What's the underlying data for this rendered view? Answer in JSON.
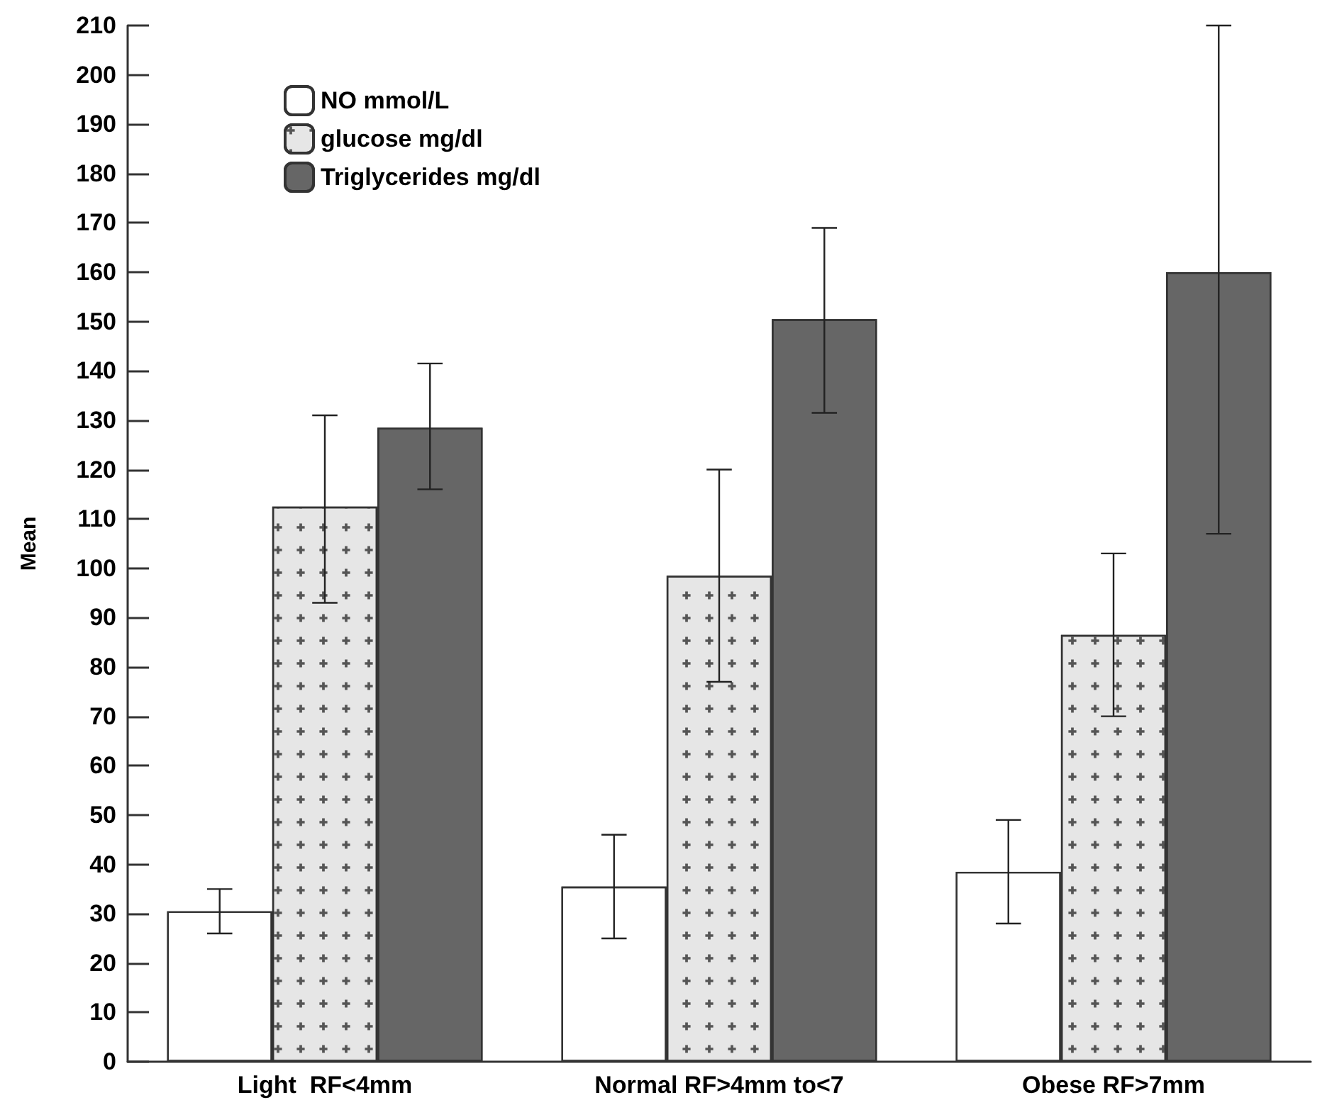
{
  "chart_data": {
    "type": "bar",
    "ylabel": "Mean",
    "categories": [
      "Light  RF<4mm",
      "Normal RF>4mm to<7",
      "Obese RF>7mm"
    ],
    "series": [
      {
        "name": "NO mmol/L",
        "color": "#ffffff",
        "values": [
          30.5,
          35.5,
          38.5
        ],
        "errors": [
          [
            26,
            35
          ],
          [
            25,
            46
          ],
          [
            28,
            49
          ]
        ]
      },
      {
        "name": "glucose mg/dl",
        "color": "#e6e6e6",
        "values": [
          112.5,
          98.5,
          86.5
        ],
        "errors": [
          [
            93,
            131
          ],
          [
            77,
            120
          ],
          [
            70,
            103
          ]
        ]
      },
      {
        "name": "Triglycerides mg/dl",
        "color": "#666666",
        "values": [
          128.5,
          150.5,
          160
        ],
        "errors": [
          [
            116,
            141.5
          ],
          [
            131.5,
            169
          ],
          [
            107,
            210
          ]
        ]
      }
    ],
    "ylim": [
      0,
      210
    ],
    "yticks": [
      0,
      10,
      20,
      30,
      40,
      50,
      60,
      70,
      80,
      90,
      100,
      110,
      120,
      130,
      140,
      150,
      160,
      170,
      180,
      190,
      200,
      210
    ],
    "grid": false,
    "legend": "top left"
  }
}
